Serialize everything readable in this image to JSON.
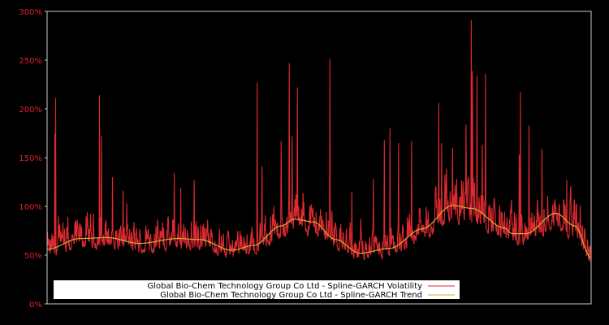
{
  "chart_data": {
    "type": "line",
    "title": "",
    "xlabel": "",
    "ylabel": "",
    "ylim": [
      0,
      300
    ],
    "y_ticks": [
      "0%",
      "50%",
      "100%",
      "150%",
      "200%",
      "250%",
      "300%"
    ],
    "y_tick_values": [
      0,
      50,
      100,
      150,
      200,
      250,
      300
    ],
    "grid": false,
    "legend_position": "lower-left",
    "background": "#000000",
    "axis_color": "#c8c8c8",
    "tick_label_color": "#e0202a",
    "series": [
      {
        "name": "Global Bio-Chem Technology Group Co Ltd - Spline-GARCH Volatility",
        "color": "#dd2a30",
        "kind": "volatility",
        "baseline_ratio": 0.82,
        "spikes": [
          {
            "x": 0.016,
            "value": 211
          },
          {
            "x": 0.014,
            "value": 175
          },
          {
            "x": 0.096,
            "value": 214
          },
          {
            "x": 0.1,
            "value": 172
          },
          {
            "x": 0.12,
            "value": 130
          },
          {
            "x": 0.14,
            "value": 116
          },
          {
            "x": 0.234,
            "value": 134
          },
          {
            "x": 0.246,
            "value": 119
          },
          {
            "x": 0.27,
            "value": 127
          },
          {
            "x": 0.386,
            "value": 227
          },
          {
            "x": 0.395,
            "value": 141
          },
          {
            "x": 0.43,
            "value": 167
          },
          {
            "x": 0.445,
            "value": 247
          },
          {
            "x": 0.45,
            "value": 172
          },
          {
            "x": 0.46,
            "value": 222
          },
          {
            "x": 0.52,
            "value": 251
          },
          {
            "x": 0.56,
            "value": 115
          },
          {
            "x": 0.6,
            "value": 128
          },
          {
            "x": 0.62,
            "value": 168
          },
          {
            "x": 0.63,
            "value": 180
          },
          {
            "x": 0.646,
            "value": 165
          },
          {
            "x": 0.67,
            "value": 167
          },
          {
            "x": 0.72,
            "value": 206
          },
          {
            "x": 0.725,
            "value": 165
          },
          {
            "x": 0.745,
            "value": 160
          },
          {
            "x": 0.78,
            "value": 291
          },
          {
            "x": 0.782,
            "value": 239
          },
          {
            "x": 0.79,
            "value": 234
          },
          {
            "x": 0.806,
            "value": 236
          },
          {
            "x": 0.8,
            "value": 163
          },
          {
            "x": 0.77,
            "value": 184
          },
          {
            "x": 0.87,
            "value": 217
          },
          {
            "x": 0.868,
            "value": 153
          },
          {
            "x": 0.886,
            "value": 183
          },
          {
            "x": 0.91,
            "value": 159
          },
          {
            "x": 0.955,
            "value": 127
          },
          {
            "x": 0.98,
            "value": 101
          }
        ]
      },
      {
        "name": "Global Bio-Chem Technology Group Co Ltd - Spline-GARCH Trend",
        "color": "#d4a83a",
        "kind": "trend",
        "points": [
          {
            "x": 0.0,
            "value": 56
          },
          {
            "x": 0.06,
            "value": 67
          },
          {
            "x": 0.1,
            "value": 68
          },
          {
            "x": 0.16,
            "value": 62
          },
          {
            "x": 0.22,
            "value": 64
          },
          {
            "x": 0.26,
            "value": 67
          },
          {
            "x": 0.31,
            "value": 61
          },
          {
            "x": 0.34,
            "value": 55
          },
          {
            "x": 0.38,
            "value": 60
          },
          {
            "x": 0.43,
            "value": 79
          },
          {
            "x": 0.45,
            "value": 86
          },
          {
            "x": 0.49,
            "value": 84
          },
          {
            "x": 0.53,
            "value": 67
          },
          {
            "x": 0.575,
            "value": 52
          },
          {
            "x": 0.62,
            "value": 55
          },
          {
            "x": 0.68,
            "value": 73
          },
          {
            "x": 0.73,
            "value": 95
          },
          {
            "x": 0.75,
            "value": 101
          },
          {
            "x": 0.78,
            "value": 99
          },
          {
            "x": 0.83,
            "value": 83
          },
          {
            "x": 0.86,
            "value": 73
          },
          {
            "x": 0.9,
            "value": 72
          },
          {
            "x": 0.94,
            "value": 84
          },
          {
            "x": 0.97,
            "value": 93
          },
          {
            "x": 1.0,
            "value": 91
          },
          {
            "x": 1.04,
            "value": 72
          },
          {
            "x": 1.0,
            "value": 47
          }
        ]
      }
    ]
  },
  "legend": {
    "items": [
      {
        "label": "Global Bio-Chem Technology Group Co Ltd - Spline-GARCH Volatility",
        "color": "#dd2a30"
      },
      {
        "label": "Global Bio-Chem Technology Group Co Ltd - Spline-GARCH Trend",
        "color": "#d4a83a"
      }
    ]
  }
}
